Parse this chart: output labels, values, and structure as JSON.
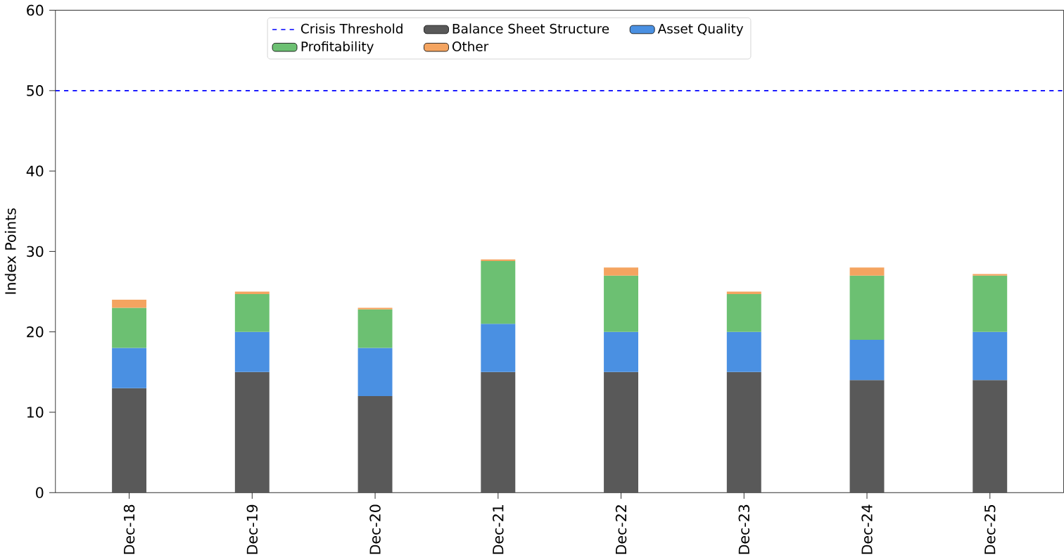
{
  "chart_data": {
    "type": "bar",
    "stacked": true,
    "ylabel": "Index Points",
    "categories": [
      "Dec-18",
      "Dec-19",
      "Dec-20",
      "Dec-21",
      "Dec-22",
      "Dec-23",
      "Dec-24",
      "Dec-25"
    ],
    "series": [
      {
        "name": "Balance Sheet Structure",
        "color": "#595959",
        "values": [
          13,
          15,
          12,
          15,
          15,
          15,
          14,
          14
        ]
      },
      {
        "name": "Asset Quality",
        "color": "#4a90e2",
        "values": [
          5,
          5,
          6,
          6,
          5,
          5,
          5,
          6
        ]
      },
      {
        "name": "Profitability",
        "color": "#6cc072",
        "values": [
          5,
          4.7,
          4.8,
          7.8,
          7,
          4.7,
          8,
          7
        ]
      },
      {
        "name": "Other",
        "color": "#f4a460",
        "values": [
          1,
          0.3,
          0.2,
          0.2,
          1,
          0.3,
          1,
          0.2
        ]
      }
    ],
    "ylim": [
      0,
      60
    ],
    "yticks": [
      0,
      10,
      20,
      30,
      40,
      50,
      60
    ],
    "ref_lines": [
      {
        "axis": "y",
        "value": 50,
        "label": "Crisis Threshold",
        "color": "#0000ff",
        "line_style": "dashed"
      }
    ],
    "legend": "top",
    "grid": false
  }
}
